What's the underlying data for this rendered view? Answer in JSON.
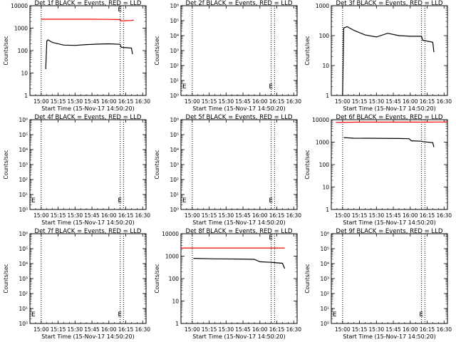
{
  "colors": {
    "events": "#000000",
    "lld": "#ff0000",
    "background": "#ffffff"
  },
  "chart_data": [
    {
      "type": "line",
      "title": "Det 1f BLACK = Events, RED = LLD",
      "xlabel": "Start Time (15-Nov-17 14:50:20)",
      "ylabel": "Counts/sec",
      "xticks": [
        "15:00",
        "15:15",
        "15:30",
        "15:45",
        "16:00",
        "16:15",
        "16:30"
      ],
      "xlim": [
        "14:50",
        "16:33"
      ],
      "yscale": "log",
      "ylim": [
        1,
        10000
      ],
      "yticks": [
        "1",
        "10",
        "100",
        "1000",
        "10000"
      ],
      "vlines": [
        "15:00",
        "16:10",
        "16:13"
      ],
      "series": [
        {
          "color": "red",
          "x": [
            "15:00",
            "15:45",
            "16:00",
            "16:10",
            "16:11",
            "16:20",
            "16:22"
          ],
          "y": [
            2500,
            2500,
            2450,
            2400,
            2100,
            2200,
            2300
          ]
        },
        {
          "color": "black",
          "x": [
            "15:04",
            "15:05",
            "15:06",
            "15:10",
            "15:20",
            "15:30",
            "15:40",
            "15:50",
            "16:00",
            "16:10",
            "16:11",
            "16:20",
            "16:21"
          ],
          "y": [
            15,
            270,
            300,
            230,
            175,
            170,
            185,
            195,
            200,
            190,
            140,
            130,
            70
          ]
        }
      ]
    },
    {
      "type": "line",
      "title": "Det 2f BLACK = Events, RED = LLD",
      "xlabel": "Start Time (15-Nov-17 14:50:20)",
      "ylabel": "Counts/sec",
      "xticks": [
        "15:00",
        "15:15",
        "15:30",
        "15:45",
        "16:00",
        "16:15",
        "16:30"
      ],
      "xlim": [
        "14:50",
        "16:33"
      ],
      "yscale": "log",
      "ylim": [
        1,
        1000000
      ],
      "yticks": [
        "10⁰",
        "10¹",
        "10²",
        "10³",
        "10⁴",
        "10⁵",
        "10⁶"
      ],
      "vlines": [
        "15:00",
        "16:10",
        "16:13"
      ],
      "series": []
    },
    {
      "type": "line",
      "title": "Det 3f BLACK = Events, RED = LLD",
      "xlabel": "Start Time (15-Nov-17 14:50:20)",
      "ylabel": "Counts/sec",
      "xticks": [
        "15:00",
        "15:15",
        "15:30",
        "15:45",
        "16:00",
        "16:15",
        "16:30"
      ],
      "xlim": [
        "14:50",
        "16:33"
      ],
      "yscale": "log",
      "ylim": [
        1,
        1000
      ],
      "yticks": [
        "1",
        "10",
        "100",
        "1000"
      ],
      "vlines": [
        "15:00",
        "16:10",
        "16:13"
      ],
      "series": [
        {
          "color": "black",
          "x": [
            "15:00",
            "15:01",
            "15:04",
            "15:10",
            "15:20",
            "15:30",
            "15:40",
            "15:50",
            "16:00",
            "16:10",
            "16:11",
            "16:20",
            "16:21"
          ],
          "y": [
            1,
            180,
            200,
            150,
            105,
            90,
            120,
            100,
            95,
            95,
            70,
            60,
            28
          ]
        }
      ]
    },
    {
      "type": "line",
      "title": "Det 4f BLACK = Events, RED = LLD",
      "xlabel": "Start Time (15-Nov-17 14:50:20)",
      "ylabel": "Counts/sec",
      "xticks": [
        "15:00",
        "15:15",
        "15:30",
        "15:45",
        "16:00",
        "16:15",
        "16:30"
      ],
      "xlim": [
        "14:50",
        "16:33"
      ],
      "yscale": "log",
      "ylim": [
        1,
        1000000
      ],
      "yticks": [
        "10⁰",
        "10¹",
        "10²",
        "10³",
        "10⁴",
        "10⁵",
        "10⁶"
      ],
      "vlines": [
        "15:00",
        "16:10",
        "16:13"
      ],
      "series": []
    },
    {
      "type": "line",
      "title": "Det 5f BLACK = Events, RED = LLD",
      "xlabel": "Start Time (15-Nov-17 14:50:20)",
      "ylabel": "Counts/sec",
      "xticks": [
        "15:00",
        "15:15",
        "15:30",
        "15:45",
        "16:00",
        "16:15",
        "16:30"
      ],
      "xlim": [
        "14:50",
        "16:33"
      ],
      "yscale": "log",
      "ylim": [
        1,
        1000000
      ],
      "yticks": [
        "10⁰",
        "10¹",
        "10²",
        "10³",
        "10⁴",
        "10⁵",
        "10⁶"
      ],
      "vlines": [
        "15:00",
        "16:10",
        "16:13"
      ],
      "series": []
    },
    {
      "type": "line",
      "title": "Det 6f BLACK = Events, RED = LLD",
      "xlabel": "Start Time (15-Nov-17 14:50:20)",
      "ylabel": "Counts/sec",
      "xticks": [
        "15:00",
        "15:15",
        "15:30",
        "15:45",
        "16:00",
        "16:15",
        "16:30"
      ],
      "xlim": [
        "14:50",
        "16:33"
      ],
      "yscale": "log",
      "ylim": [
        1,
        10000
      ],
      "yticks": [
        "1",
        "10",
        "100",
        "1000",
        "10000"
      ],
      "vlines": [
        "15:00",
        "16:10",
        "16:13"
      ],
      "series": [
        {
          "color": "red",
          "x": [
            "14:54",
            "15:15",
            "15:45",
            "16:10",
            "16:33"
          ],
          "y": [
            7600,
            7800,
            7800,
            7800,
            7900
          ]
        },
        {
          "color": "black",
          "x": [
            "15:01",
            "15:10",
            "15:30",
            "15:50",
            "15:59",
            "16:01",
            "16:10",
            "16:11",
            "16:20",
            "16:21"
          ],
          "y": [
            1600,
            1500,
            1480,
            1450,
            1420,
            1150,
            1100,
            1050,
            950,
            600
          ]
        }
      ]
    },
    {
      "type": "line",
      "title": "Det 7f BLACK = Events, RED = LLD",
      "xlabel": "Start Time (15-Nov-17 14:50:20)",
      "ylabel": "Counts/sec",
      "xticks": [
        "15:00",
        "15:15",
        "15:30",
        "15:45",
        "16:00",
        "16:15",
        "16:30"
      ],
      "xlim": [
        "14:50",
        "16:33"
      ],
      "yscale": "log",
      "ylim": [
        1,
        1000000
      ],
      "yticks": [
        "10⁰",
        "10¹",
        "10²",
        "10³",
        "10⁴",
        "10⁵",
        "10⁶"
      ],
      "vlines": [
        "15:00",
        "16:10",
        "16:13"
      ],
      "series": []
    },
    {
      "type": "line",
      "title": "Det 8f BLACK = Events, RED = LLD",
      "xlabel": "Start Time (15-Nov-17 14:50:20)",
      "ylabel": "Counts/sec",
      "xticks": [
        "15:00",
        "15:15",
        "15:30",
        "15:45",
        "16:00",
        "16:15",
        "16:30"
      ],
      "xlim": [
        "14:50",
        "16:33"
      ],
      "yscale": "log",
      "ylim": [
        1,
        10000
      ],
      "yticks": [
        "1",
        "10",
        "100",
        "1000",
        "10000"
      ],
      "vlines": [
        "15:00",
        "16:10",
        "16:13"
      ],
      "series": [
        {
          "color": "red",
          "x": [
            "14:50",
            "15:30",
            "16:22"
          ],
          "y": [
            2300,
            2300,
            2300
          ]
        },
        {
          "color": "black",
          "x": [
            "15:01",
            "15:20",
            "15:45",
            "15:55",
            "16:00",
            "16:10",
            "16:20",
            "16:22"
          ],
          "y": [
            800,
            760,
            740,
            720,
            560,
            530,
            480,
            280
          ]
        }
      ]
    },
    {
      "type": "line",
      "title": "Det 9f BLACK = Events, RED = LLD",
      "xlabel": "Start Time (15-Nov-17 14:50:20)",
      "ylabel": "Counts/sec",
      "xticks": [
        "15:00",
        "15:15",
        "15:30",
        "15:45",
        "16:00",
        "16:15",
        "16:30"
      ],
      "xlim": [
        "14:50",
        "16:33"
      ],
      "yscale": "log",
      "ylim": [
        1,
        1000000
      ],
      "yticks": [
        "10⁰",
        "10¹",
        "10²",
        "10³",
        "10⁴",
        "10⁵",
        "10⁶"
      ],
      "vlines": [
        "15:00",
        "16:10",
        "16:13"
      ],
      "series": []
    }
  ]
}
